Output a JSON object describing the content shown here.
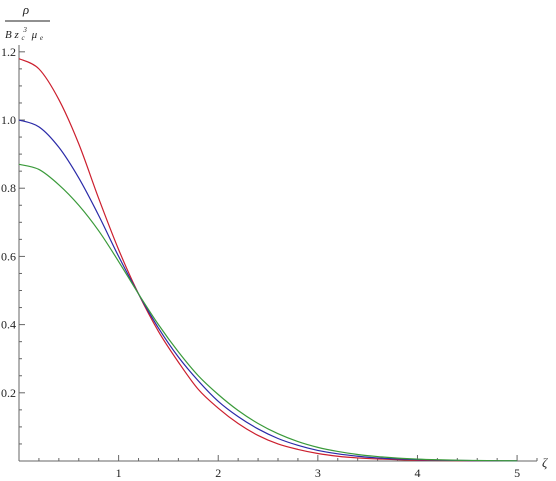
{
  "chart_data": {
    "type": "line",
    "xlabel": "ζ",
    "ylabel": {
      "numerator": "ρ",
      "denominator": {
        "base": "B z",
        "sub": "c",
        "sup": "3",
        "mu": "μ",
        "mu_sub": "e"
      }
    },
    "xlim": [
      0,
      5.2
    ],
    "ylim": [
      0,
      1.22
    ],
    "x_ticks": [
      1,
      2,
      3,
      4,
      5
    ],
    "x_tick_labels": [
      "1",
      "2",
      "3",
      "4",
      "5"
    ],
    "y_ticks": [
      0.2,
      0.4,
      0.6,
      0.8,
      1.0,
      1.2
    ],
    "y_tick_labels": [
      "0.2",
      "0.4",
      "0.6",
      "0.8",
      "1.0",
      "1.2"
    ],
    "grid": false,
    "series": [
      {
        "color": "#cc1f2e",
        "x": [
          0,
          0.2,
          0.4,
          0.6,
          0.8,
          1.0,
          1.2,
          1.4,
          1.6,
          1.8,
          2.0,
          2.2,
          2.4,
          2.6,
          2.8,
          3.0,
          3.2,
          3.4,
          3.6,
          3.8,
          4.0,
          4.2,
          4.4,
          4.6,
          4.8,
          5.0
        ],
        "y": [
          1.18,
          1.15,
          1.06,
          0.93,
          0.77,
          0.62,
          0.49,
          0.38,
          0.29,
          0.21,
          0.155,
          0.11,
          0.075,
          0.05,
          0.034,
          0.022,
          0.014,
          0.009,
          0.006,
          0.004,
          0.002,
          0.0015,
          0.001,
          0.0006,
          0.0003,
          0.0002
        ]
      },
      {
        "color": "#2a2aa8",
        "x": [
          0,
          0.2,
          0.4,
          0.6,
          0.8,
          1.0,
          1.2,
          1.4,
          1.6,
          1.8,
          2.0,
          2.2,
          2.4,
          2.6,
          2.8,
          3.0,
          3.2,
          3.4,
          3.6,
          3.8,
          4.0,
          4.2,
          4.4,
          4.6,
          4.8,
          5.0
        ],
        "y": [
          1.0,
          0.98,
          0.92,
          0.83,
          0.72,
          0.6,
          0.49,
          0.39,
          0.305,
          0.235,
          0.175,
          0.13,
          0.094,
          0.066,
          0.046,
          0.031,
          0.021,
          0.014,
          0.009,
          0.006,
          0.004,
          0.0026,
          0.0016,
          0.001,
          0.0006,
          0.0004
        ]
      },
      {
        "color": "#3a9a3a",
        "x": [
          0,
          0.2,
          0.4,
          0.6,
          0.8,
          1.0,
          1.2,
          1.4,
          1.6,
          1.8,
          2.0,
          2.2,
          2.4,
          2.6,
          2.8,
          3.0,
          3.2,
          3.4,
          3.6,
          3.8,
          4.0,
          4.2,
          4.4,
          4.6,
          4.8,
          5.0
        ],
        "y": [
          0.87,
          0.855,
          0.81,
          0.75,
          0.675,
          0.585,
          0.49,
          0.4,
          0.32,
          0.25,
          0.195,
          0.148,
          0.11,
          0.08,
          0.057,
          0.04,
          0.028,
          0.019,
          0.013,
          0.0085,
          0.0055,
          0.0036,
          0.0023,
          0.0015,
          0.0009,
          0.0006
        ]
      }
    ]
  }
}
